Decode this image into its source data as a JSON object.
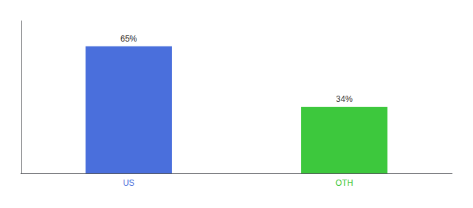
{
  "chart_data": {
    "type": "bar",
    "categories": [
      "US",
      "OTH"
    ],
    "values": [
      65,
      34
    ],
    "value_labels": [
      "65%",
      "34%"
    ],
    "colors": [
      "#4a6fdc",
      "#3dc83d"
    ],
    "ylim": [
      0,
      78
    ],
    "grid": false,
    "data_labels": true,
    "tick_labels": "x"
  }
}
